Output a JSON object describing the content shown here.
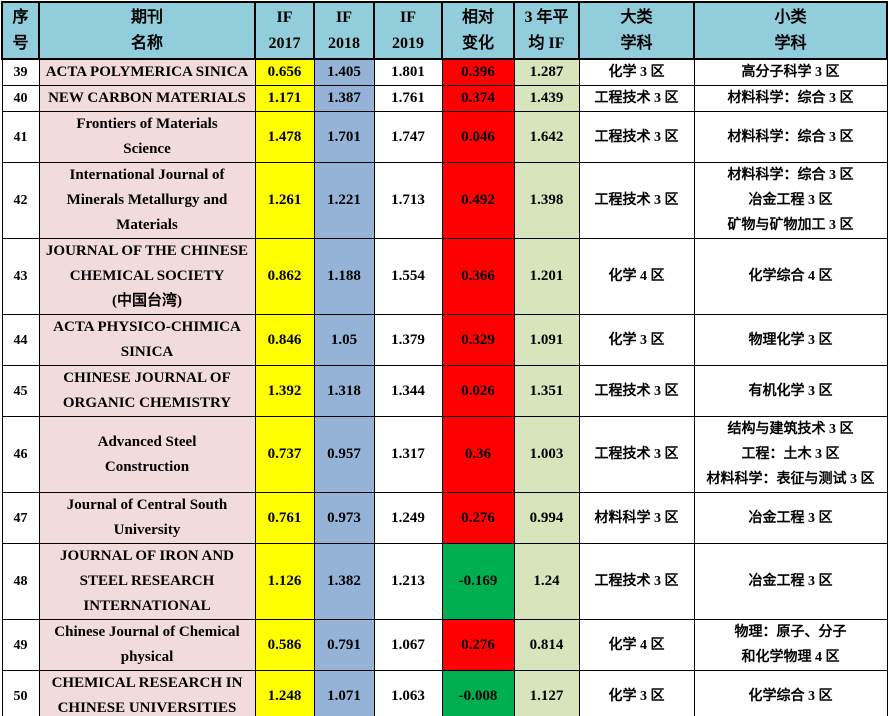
{
  "colors": {
    "header_bg": "#92CDDC",
    "name_bg": "#F2DCDB",
    "if2017_bg": "#FFFF00",
    "if2018_bg": "#95B3D7",
    "change_pos_bg": "#FF0000",
    "change_neg_bg": "#00B050",
    "avg_bg": "#D8E4BC",
    "border": "#000000"
  },
  "table": {
    "headers": {
      "no": "序\n号",
      "name": "期刊\n名称",
      "if2017": "IF\n2017",
      "if2018": "IF\n2018",
      "if2019": "IF\n2019",
      "change": "相对\n变化",
      "avg": "3 年平\n均 IF",
      "major": "大类\n学科",
      "minor": "小类\n学科"
    },
    "rows": [
      {
        "no": "39",
        "name": "ACTA POLYMERICA SINICA",
        "if2017": "0.656",
        "if2018": "1.405",
        "if2019": "1.801",
        "change": "0.396",
        "avg": "1.287",
        "major": "化学 3 区",
        "minor": "高分子科学 3 区"
      },
      {
        "no": "40",
        "name": "NEW CARBON MATERIALS",
        "if2017": "1.171",
        "if2018": "1.387",
        "if2019": "1.761",
        "change": "0.374",
        "avg": "1.439",
        "major": "工程技术 3 区",
        "minor": "材料科学：综合 3 区"
      },
      {
        "no": "41",
        "name": "Frontiers of Materials\nScience",
        "if2017": "1.478",
        "if2018": "1.701",
        "if2019": "1.747",
        "change": "0.046",
        "avg": "1.642",
        "major": "工程技术 3 区",
        "minor": "材料科学：综合 3 区"
      },
      {
        "no": "42",
        "name": "International Journal of\nMinerals Metallurgy and\nMaterials",
        "if2017": "1.261",
        "if2018": "1.221",
        "if2019": "1.713",
        "change": "0.492",
        "avg": "1.398",
        "major": "工程技术 3 区",
        "minor": "材料科学：综合 3 区\n冶金工程 3 区\n矿物与矿物加工 3 区"
      },
      {
        "no": "43",
        "name": "JOURNAL OF THE CHINESE\nCHEMICAL SOCIETY\n(中国台湾)",
        "if2017": "0.862",
        "if2018": "1.188",
        "if2019": "1.554",
        "change": "0.366",
        "avg": "1.201",
        "major": "化学 4 区",
        "minor": "化学综合 4 区"
      },
      {
        "no": "44",
        "name": "ACTA PHYSICO-CHIMICA\nSINICA",
        "if2017": "0.846",
        "if2018": "1.05",
        "if2019": "1.379",
        "change": "0.329",
        "avg": "1.091",
        "major": "化学 3 区",
        "minor": "物理化学 3 区"
      },
      {
        "no": "45",
        "name": "CHINESE JOURNAL OF\nORGANIC CHEMISTRY",
        "if2017": "1.392",
        "if2018": "1.318",
        "if2019": "1.344",
        "change": "0.026",
        "avg": "1.351",
        "major": "工程技术 3 区",
        "minor": "有机化学 3 区"
      },
      {
        "no": "46",
        "name": "Advanced Steel\nConstruction",
        "if2017": "0.737",
        "if2018": "0.957",
        "if2019": "1.317",
        "change": "0.36",
        "avg": "1.003",
        "major": "工程技术 3 区",
        "minor": "结构与建筑技术 3 区\n工程：土木 3 区\n材料科学：表征与测试 3 区"
      },
      {
        "no": "47",
        "name": "Journal of Central South\nUniversity",
        "if2017": "0.761",
        "if2018": "0.973",
        "if2019": "1.249",
        "change": "0.276",
        "avg": "0.994",
        "major": "材料科学 3 区",
        "minor": "冶金工程 3 区"
      },
      {
        "no": "48",
        "name": "JOURNAL OF IRON AND\nSTEEL RESEARCH\nINTERNATIONAL",
        "if2017": "1.126",
        "if2018": "1.382",
        "if2019": "1.213",
        "change": "-0.169",
        "avg": "1.24",
        "major": "工程技术 3 区",
        "minor": "冶金工程 3 区"
      },
      {
        "no": "49",
        "name": "Chinese Journal of Chemical\nphysical",
        "if2017": "0.586",
        "if2018": "0.791",
        "if2019": "1.067",
        "change": "0.276",
        "avg": "0.814",
        "major": "化学 4 区",
        "minor": "物理：原子、分子\n和化学物理 4 区"
      },
      {
        "no": "50",
        "name": "CHEMICAL RESEARCH IN\nCHINESE UNIVERSITIES",
        "if2017": "1.248",
        "if2018": "1.071",
        "if2019": "1.063",
        "change": "-0.008",
        "avg": "1.127",
        "major": "化学 3 区",
        "minor": "化学综合 3 区"
      }
    ],
    "partial_next_row_change_negative": true
  }
}
